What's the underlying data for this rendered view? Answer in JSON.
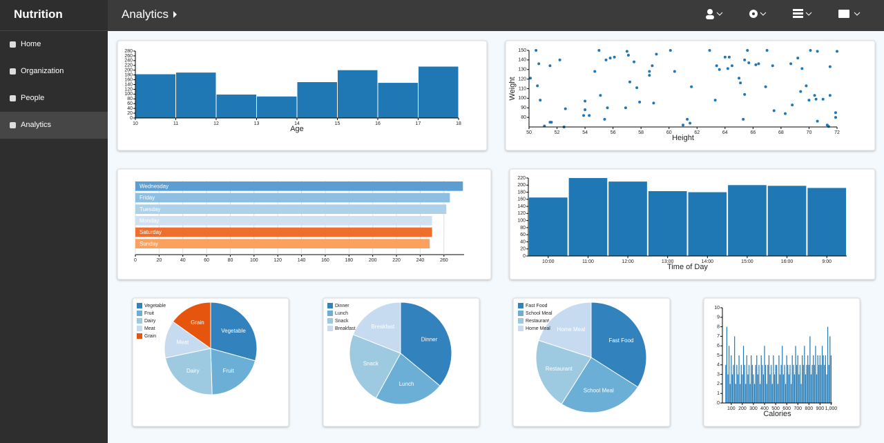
{
  "app": {
    "brand": "Nutrition",
    "page_title": "Analytics",
    "nav": [
      "Home",
      "Organization",
      "People",
      "Analytics"
    ]
  },
  "chart_data": [
    {
      "type": "histogram",
      "bins": [
        10,
        11,
        12,
        13,
        14,
        15,
        16,
        17,
        18
      ],
      "values": [
        183,
        190,
        98,
        90,
        150,
        200,
        147,
        215
      ],
      "color": "#1f77b4",
      "xlim": [
        10,
        18
      ],
      "xticks": [
        10,
        11,
        12,
        13,
        14,
        15,
        16,
        17,
        18
      ],
      "ylim": [
        0,
        280
      ],
      "yticks": [
        0,
        20,
        40,
        60,
        80,
        100,
        120,
        140,
        160,
        180,
        200,
        220,
        240,
        260,
        280
      ],
      "xlabel": "Age"
    },
    {
      "type": "scatter",
      "color": "#1f77b4",
      "xlabel": "Height",
      "ylabel": "Weight",
      "x": [
        50.1,
        50.5,
        50.7,
        50.6,
        50.8,
        51.1,
        51.5,
        51.6,
        51.5,
        52.2,
        52.6,
        52.5,
        54,
        54,
        53.9,
        54.3,
        54.7,
        55,
        55.1,
        55.4,
        55.6,
        55.5,
        55.8,
        56.1,
        56.9,
        57,
        57.1,
        57.2,
        57.5,
        57.7,
        57.9,
        58.6,
        58.6,
        58.8,
        58.9,
        59.1,
        60.1,
        60.4,
        61,
        61.3,
        61.5,
        61.6,
        62.9,
        63.3,
        63.4,
        63.6,
        64,
        64.3,
        64.2,
        64.5,
        65,
        65.1,
        65.3,
        65.4,
        65.4,
        65.6,
        65.7,
        66.2,
        66.4,
        66.9,
        67,
        67.4,
        67.5,
        68.3,
        68.7,
        68.8,
        69.2,
        69.5,
        69.4,
        69.8,
        70,
        70.1,
        70.4,
        70.5,
        70.6,
        70.6,
        71,
        71.3,
        71.4,
        71.5,
        71.5,
        72,
        71.9,
        71.9
      ],
      "y": [
        121,
        150,
        136,
        113,
        98,
        71,
        75,
        75,
        134,
        140,
        89,
        70,
        97,
        88,
        82,
        82,
        128,
        150,
        103,
        78,
        90,
        140,
        142,
        143,
        90,
        149,
        145,
        117,
        138,
        111,
        96,
        128,
        124,
        134,
        95,
        146,
        150,
        128,
        72,
        78,
        74,
        112,
        150,
        98,
        134,
        130,
        143,
        143,
        131,
        134,
        121,
        116,
        78,
        104,
        140,
        150,
        137,
        135,
        136,
        112,
        150,
        134,
        87,
        84,
        136,
        93,
        142,
        131,
        107,
        113,
        98,
        150,
        103,
        99,
        76,
        149,
        99,
        72,
        70.5,
        133,
        103,
        149,
        85,
        80
      ],
      "xlim": [
        50,
        72
      ],
      "xticks": [
        50,
        52,
        54,
        56,
        58,
        60,
        62,
        64,
        66,
        68,
        70,
        72
      ],
      "ylim": [
        70,
        150
      ],
      "yticks": [
        80,
        90,
        100,
        110,
        120,
        130,
        140,
        150
      ]
    },
    {
      "type": "bar",
      "orientation": "horizontal",
      "categories": [
        "Wednesday",
        "Friday",
        "Tuesday",
        "Monday",
        "Saturday",
        "Sunday"
      ],
      "values": [
        276,
        265,
        262,
        250,
        250,
        248
      ],
      "colors": [
        "#5b9fd2",
        "#8cbfe2",
        "#aed1ea",
        "#cfe1f1",
        "#ee6e2e",
        "#fca05e"
      ],
      "grid": true,
      "xlim": [
        0,
        277
      ],
      "xticks": [
        0,
        20,
        40,
        60,
        80,
        100,
        120,
        140,
        160,
        180,
        200,
        220,
        240,
        260
      ]
    },
    {
      "type": "bar",
      "categories": [
        "10:00",
        "11:00",
        "12:00",
        "13:00",
        "14:00",
        "15:00",
        "16:00",
        "9:00"
      ],
      "values": [
        165,
        220,
        210,
        183,
        180,
        200,
        198,
        192
      ],
      "color": "#1f77b4",
      "ylim": [
        0,
        220
      ],
      "yticks": [
        0,
        20,
        40,
        60,
        80,
        100,
        120,
        140,
        160,
        180,
        200,
        220
      ],
      "xlabel": "Time of Day"
    },
    {
      "type": "pie",
      "categories": [
        "Vegetable",
        "Fruit",
        "Dairy",
        "Meat",
        "Grain"
      ],
      "values": [
        29,
        20,
        22,
        13,
        15
      ],
      "colors": [
        "#3182bd",
        "#6baed6",
        "#9ecae1",
        "#c6dbef",
        "#e6550d"
      ]
    },
    {
      "type": "pie",
      "categories": [
        "Dinner",
        "Lunch",
        "Snack",
        "Breakfast"
      ],
      "values": [
        36,
        22,
        23,
        19
      ],
      "colors": [
        "#3182bd",
        "#6baed6",
        "#9ecae1",
        "#c6dbef"
      ]
    },
    {
      "type": "pie",
      "categories": [
        "Fast Food",
        "School Meal",
        "Restaurant",
        "Home Meal"
      ],
      "values": [
        34,
        25,
        21,
        20
      ],
      "colors": [
        "#3182bd",
        "#6baed6",
        "#9ecae1",
        "#c6dbef"
      ]
    },
    {
      "type": "bar",
      "color": "#1f77b4",
      "xlabel": "Calories",
      "x": [
        50,
        60,
        70,
        80,
        90,
        100,
        110,
        120,
        130,
        140,
        150,
        160,
        170,
        180,
        190,
        200,
        210,
        220,
        230,
        240,
        250,
        260,
        270,
        280,
        290,
        300,
        310,
        320,
        330,
        340,
        350,
        360,
        370,
        380,
        390,
        400,
        410,
        420,
        430,
        440,
        450,
        460,
        470,
        480,
        490,
        500,
        510,
        520,
        530,
        540,
        550,
        560,
        570,
        580,
        590,
        600,
        610,
        620,
        630,
        640,
        650,
        660,
        670,
        680,
        690,
        700,
        710,
        720,
        730,
        740,
        750,
        760,
        770,
        780,
        790,
        800,
        810,
        820,
        830,
        840,
        850,
        860,
        870,
        880,
        890,
        900,
        910,
        920,
        930,
        940,
        950,
        960,
        970,
        980,
        990,
        1000
      ],
      "values": [
        4,
        8,
        3,
        6,
        2,
        5,
        3,
        4,
        7,
        2,
        4,
        3,
        5,
        2,
        4,
        3,
        6,
        4,
        2,
        5,
        3,
        4,
        2,
        5,
        4,
        3,
        2,
        4,
        5,
        3,
        4,
        2,
        5,
        4,
        3,
        6,
        4,
        2,
        4,
        5,
        3,
        4,
        2,
        5,
        3,
        4,
        4,
        2,
        5,
        3,
        4,
        6,
        3,
        4,
        2,
        5,
        4,
        3,
        4,
        2,
        5,
        4,
        3,
        6,
        4,
        5,
        3,
        4,
        2,
        5,
        4,
        6,
        3,
        4,
        5,
        4,
        7,
        3,
        4,
        5,
        4,
        6,
        3,
        5,
        4,
        5,
        4,
        6,
        5,
        4,
        5,
        3,
        8,
        4,
        7,
        5
      ],
      "xlim": [
        20,
        1010
      ],
      "xticks": [
        100,
        200,
        300,
        400,
        500,
        600,
        700,
        800,
        900,
        {
          "value": 1000,
          "label": "1,000"
        }
      ],
      "ylim": [
        0,
        10
      ],
      "yticks": [
        0,
        1,
        2,
        3,
        4,
        5,
        6,
        7,
        8,
        9,
        10
      ]
    }
  ]
}
